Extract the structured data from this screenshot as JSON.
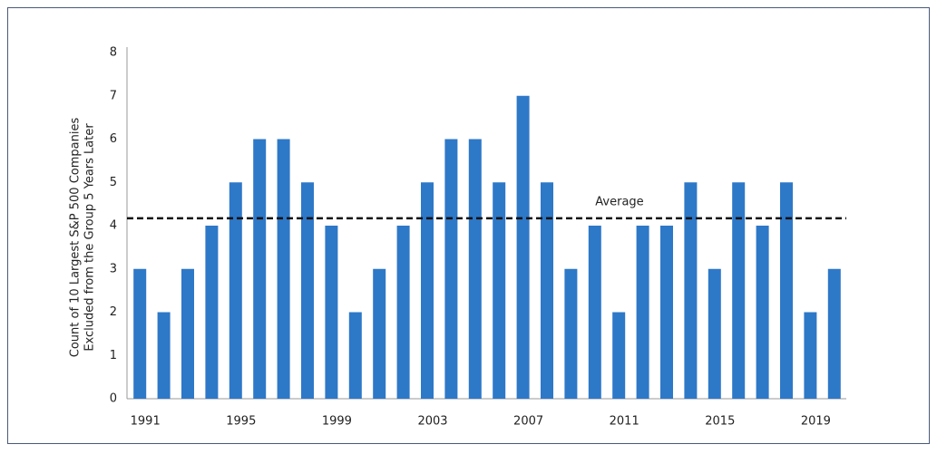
{
  "chart_data": {
    "type": "bar",
    "y_label": [
      "Count of 10 Largest S&P 500 Companies",
      "Excluded from the Group 5 Years Later"
    ],
    "categories": [
      "1991",
      null,
      null,
      null,
      "1995",
      null,
      null,
      null,
      "1999",
      null,
      null,
      null,
      "2003",
      null,
      null,
      null,
      "2007",
      null,
      null,
      null,
      "2011",
      null,
      null,
      null,
      "2015",
      null,
      null,
      null,
      "2019",
      null
    ],
    "values": [
      3,
      2,
      3,
      4,
      5,
      6,
      6,
      5,
      4,
      2,
      3,
      4,
      5,
      6,
      6,
      5,
      7,
      5,
      3,
      4,
      2,
      4,
      4,
      5,
      3,
      5,
      4,
      5,
      2,
      3
    ],
    "color": "#2e78c8",
    "ylim": [
      0,
      8
    ],
    "yticks": [
      0,
      1,
      2,
      3,
      4,
      5,
      6,
      7,
      8
    ],
    "grid": false,
    "average": {
      "label": "Average",
      "value": 4.17
    }
  }
}
